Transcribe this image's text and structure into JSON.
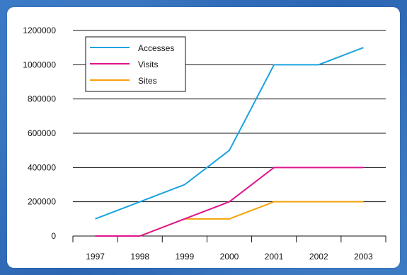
{
  "chart_data": {
    "type": "line",
    "categories": [
      "1997",
      "1998",
      "1999",
      "2000",
      "2001",
      "2002",
      "2003"
    ],
    "series": [
      {
        "name": "Accesses",
        "values": [
          100000,
          200000,
          300000,
          500000,
          1000000,
          1000000,
          1100000
        ],
        "color": "#1aa3e0"
      },
      {
        "name": "Visits",
        "values": [
          0,
          0,
          100000,
          200000,
          400000,
          400000,
          400000
        ],
        "color": "#e0148c"
      },
      {
        "name": "Sites",
        "values": [
          0,
          0,
          100000,
          100000,
          200000,
          200000,
          200000
        ],
        "color": "#f5a20a"
      }
    ],
    "ylim": [
      0,
      1200000
    ],
    "yticks": [
      "0",
      "200000",
      "400000",
      "600000",
      "800000",
      "1000000",
      "1200000"
    ],
    "grid": true,
    "legend_position": "top-left"
  }
}
